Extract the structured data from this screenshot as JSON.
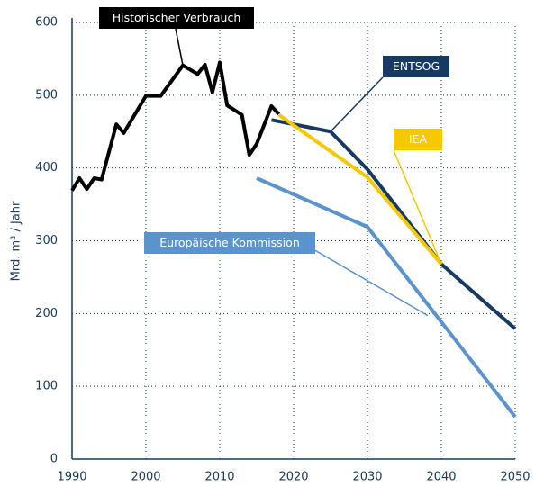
{
  "chart_data": {
    "type": "line",
    "y_label": "Mrd. m³ / Jahr",
    "xlim": [
      1990,
      2050
    ],
    "xticks": [
      1990,
      2000,
      2010,
      2020,
      2030,
      2040,
      2050
    ],
    "ylim": [
      0,
      600
    ],
    "yticks": [
      0,
      100,
      200,
      300,
      400,
      500,
      600
    ],
    "grid": true,
    "series": [
      {
        "name": "Historischer Verbrauch",
        "color": "#000000",
        "x": [
          1990,
          1991,
          1992,
          1993,
          1994,
          1996,
          1997,
          2000,
          2002,
          2005,
          2007,
          2008,
          2009,
          2010,
          2011,
          2013,
          2014,
          2015,
          2017,
          2018
        ],
        "values": [
          369,
          386,
          371,
          386,
          384,
          460,
          448,
          499,
          499,
          541,
          529,
          542,
          504,
          545,
          486,
          473,
          418,
          433,
          485,
          474
        ]
      },
      {
        "name": "ENTSOG",
        "color": "#163a63",
        "x": [
          2017,
          2025,
          2030,
          2040,
          2050
        ],
        "values": [
          466,
          450,
          398,
          268,
          179
        ]
      },
      {
        "name": "IEA",
        "color": "#f5c800",
        "x": [
          2018,
          2030,
          2040
        ],
        "values": [
          473,
          387,
          268
        ]
      },
      {
        "name": "Europäische Kommission",
        "color": "#5b93cf",
        "x": [
          2015,
          2030,
          2050
        ],
        "values": [
          386,
          319,
          58
        ]
      }
    ]
  }
}
